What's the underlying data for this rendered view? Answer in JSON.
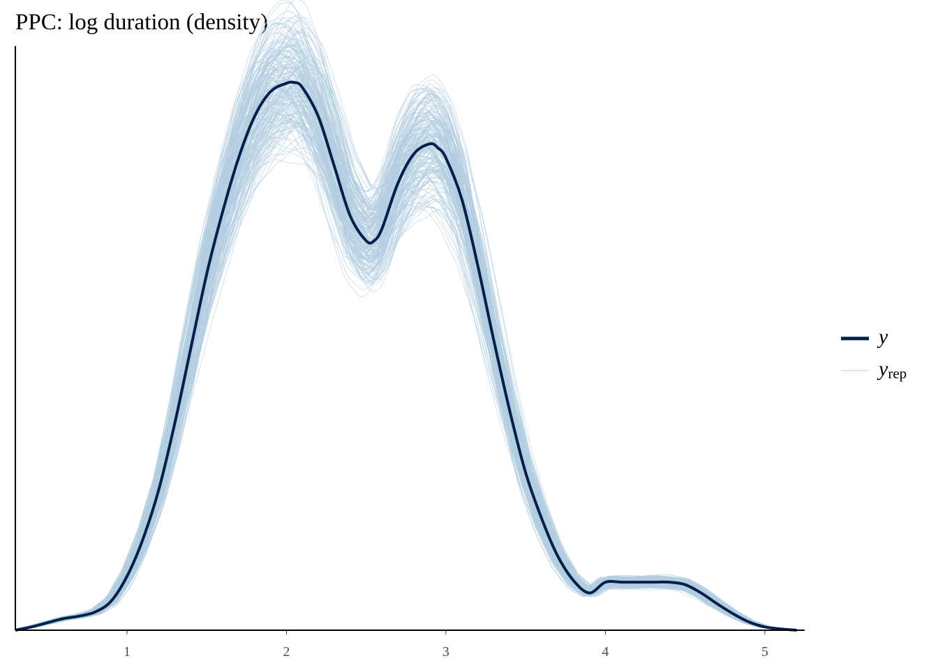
{
  "chart_data": {
    "type": "line",
    "title": "PPC: log duration (density)",
    "xlabel": "",
    "ylabel": "",
    "xlim": [
      0.3,
      5.25
    ],
    "ylim": [
      0,
      0.705
    ],
    "x_ticks": [
      1,
      2,
      3,
      4,
      5
    ],
    "x_tick_labels": [
      "1",
      "2",
      "3",
      "4",
      "5"
    ],
    "y_ticks_shown": false,
    "grid": false,
    "legend_position": "right",
    "colors": {
      "y": "#011f4b",
      "y_rep": "#b3cde0"
    },
    "legend": [
      {
        "key": "y",
        "label": "y",
        "sub": ""
      },
      {
        "key": "y_rep",
        "label": "y",
        "sub": "rep"
      }
    ],
    "y_rep_draws": 200,
    "series": [
      {
        "key": "y",
        "x": [
          0.3,
          0.4,
          0.5,
          0.6,
          0.7,
          0.8,
          0.9,
          1.0,
          1.1,
          1.2,
          1.3,
          1.4,
          1.5,
          1.6,
          1.7,
          1.8,
          1.9,
          2.0,
          2.05,
          2.1,
          2.2,
          2.3,
          2.4,
          2.5,
          2.55,
          2.6,
          2.7,
          2.8,
          2.9,
          2.95,
          3.0,
          3.1,
          3.2,
          3.3,
          3.4,
          3.5,
          3.6,
          3.7,
          3.8,
          3.9,
          4.0,
          4.1,
          4.2,
          4.3,
          4.4,
          4.5,
          4.6,
          4.7,
          4.8,
          4.9,
          5.0,
          5.1,
          5.2
        ],
        "values": [
          0.0,
          0.004,
          0.009,
          0.014,
          0.017,
          0.022,
          0.035,
          0.065,
          0.11,
          0.17,
          0.25,
          0.34,
          0.43,
          0.505,
          0.57,
          0.62,
          0.65,
          0.66,
          0.661,
          0.655,
          0.62,
          0.56,
          0.5,
          0.47,
          0.47,
          0.485,
          0.54,
          0.575,
          0.587,
          0.582,
          0.57,
          0.52,
          0.44,
          0.35,
          0.265,
          0.19,
          0.135,
          0.09,
          0.06,
          0.045,
          0.058,
          0.058,
          0.058,
          0.058,
          0.058,
          0.055,
          0.045,
          0.032,
          0.02,
          0.01,
          0.004,
          0.0015,
          0.0
        ]
      }
    ]
  }
}
